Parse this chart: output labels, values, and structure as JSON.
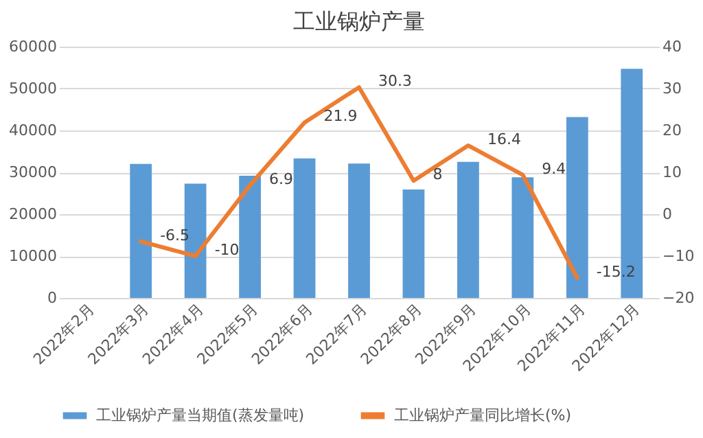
{
  "chart_data": {
    "type": "bar",
    "title": "工业锅炉产量",
    "categories": [
      "2022年2月",
      "2022年3月",
      "2022年4月",
      "2022年5月",
      "2022年6月",
      "2022年7月",
      "2022年8月",
      "2022年9月",
      "2022年10月",
      "2022年11月",
      "2022年12月"
    ],
    "series": [
      {
        "name": "工业锅炉产量当期值(蒸发量吨)",
        "color": "#5b9bd5",
        "values": [
          null,
          32000,
          27300,
          29200,
          33300,
          32100,
          25900,
          32500,
          28800,
          43200,
          54700
        ]
      },
      {
        "name": "工业锅炉产量同比增长(%)",
        "type": "line",
        "axis": "y2",
        "color": "#ed7d31",
        "values": [
          null,
          -6.5,
          -10,
          6.9,
          21.9,
          30.3,
          8,
          16.4,
          9.4,
          -15.2,
          null
        ],
        "value_labels": [
          null,
          "-6.5",
          "-10",
          "6.9",
          "21.9",
          "30.3",
          "8",
          "16.4",
          "9.4",
          "-15.2",
          null
        ]
      }
    ],
    "ylim": [
      0,
      60000
    ],
    "yticks": [
      0,
      10000,
      20000,
      30000,
      40000,
      50000,
      60000
    ],
    "y2lim": [
      -20,
      40
    ],
    "y2ticks": [
      -20,
      -10,
      0,
      10,
      20,
      30,
      40
    ],
    "grid": "y",
    "legend": "bottom"
  }
}
